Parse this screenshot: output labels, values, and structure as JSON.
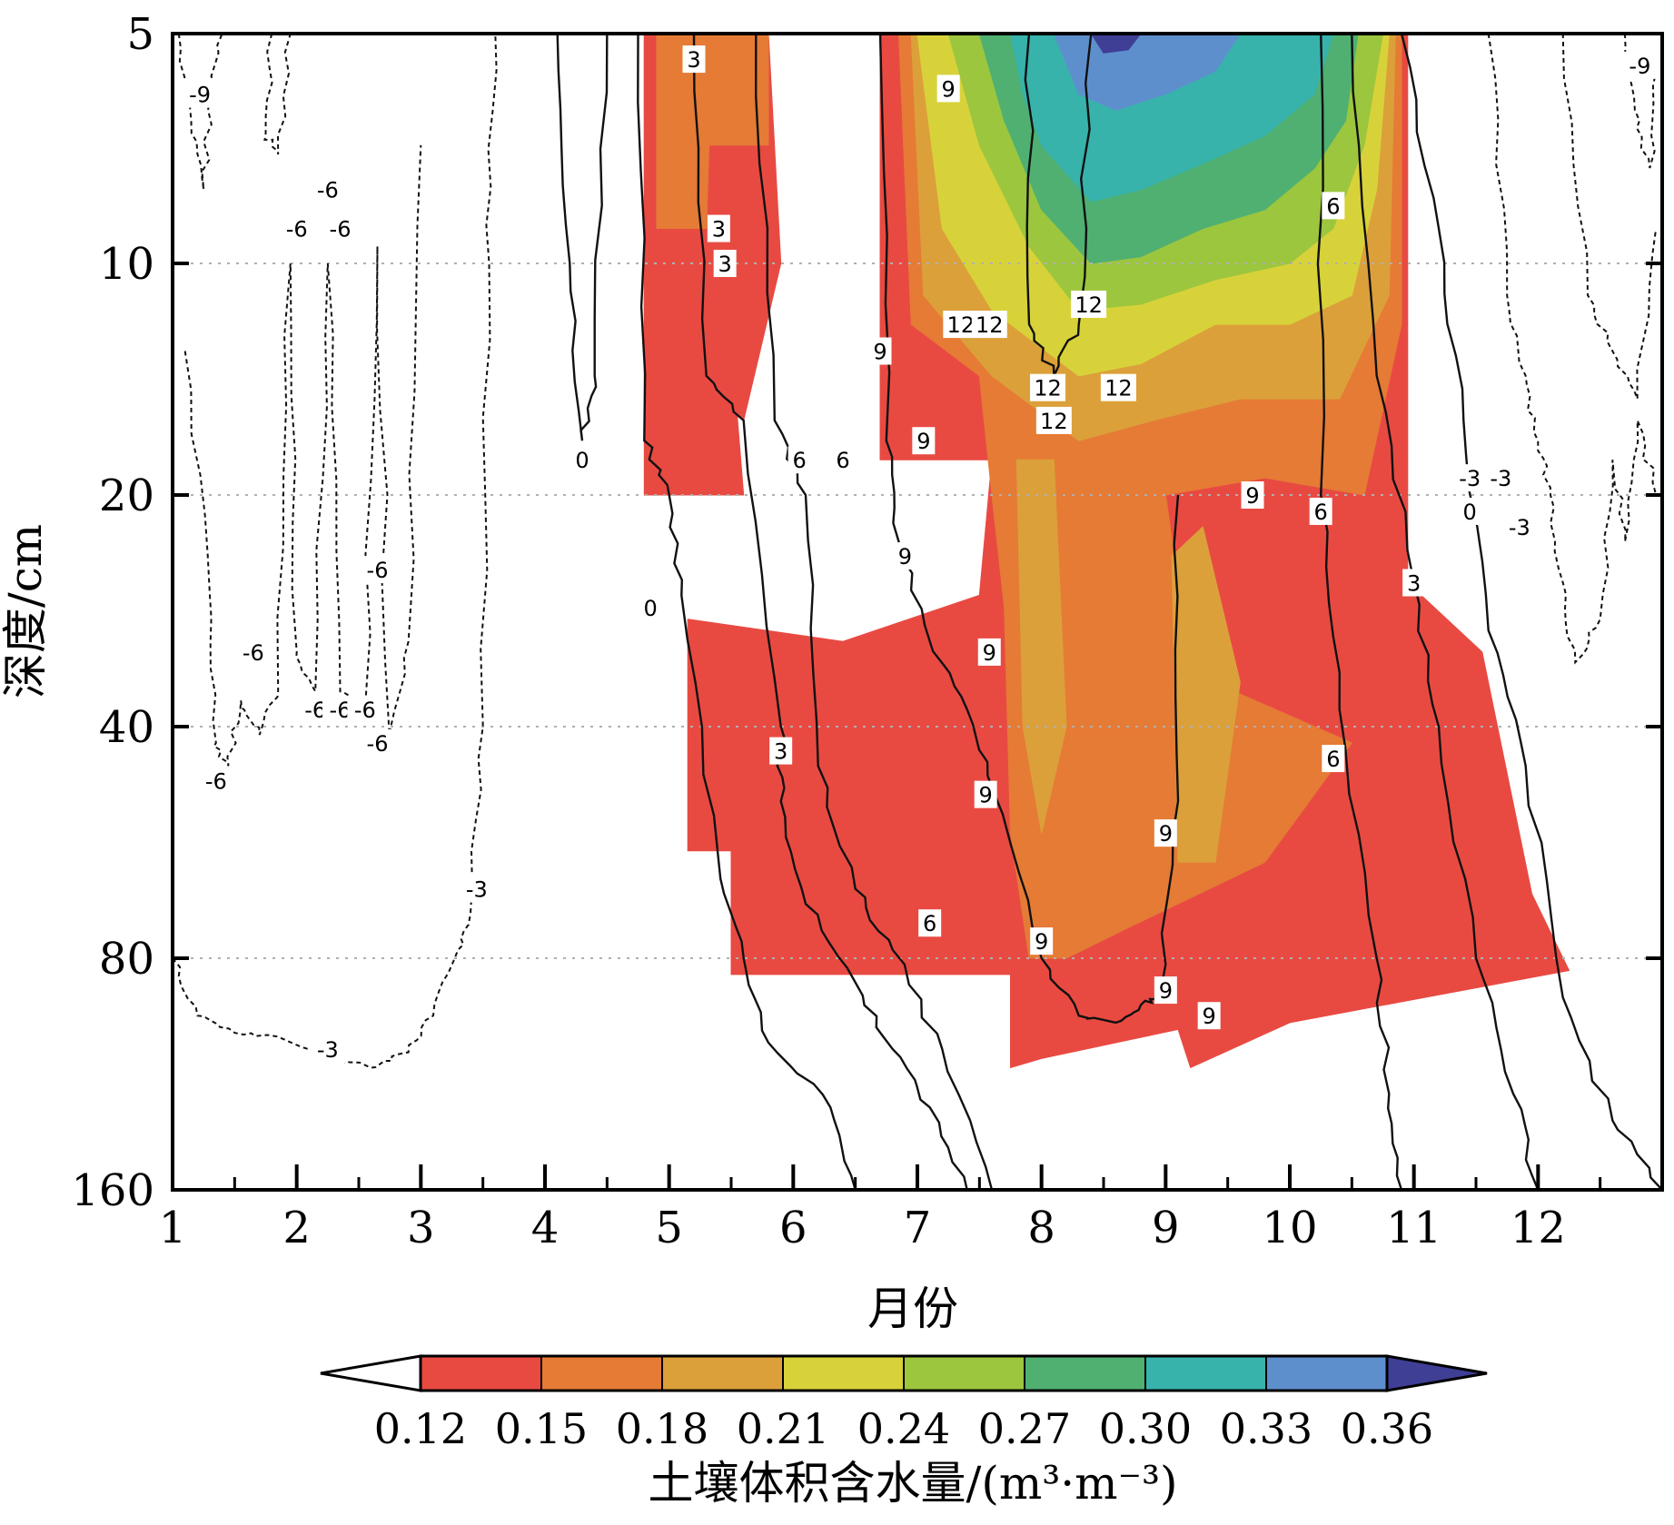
{
  "chart_data": {
    "type": "heatmap",
    "xlabel": "月份",
    "ylabel": "深度/cm",
    "x_ticks": [
      1,
      2,
      3,
      4,
      5,
      6,
      7,
      8,
      9,
      10,
      11,
      12
    ],
    "xlim": [
      1,
      13
    ],
    "y_ticks": [
      5,
      10,
      20,
      40,
      80,
      160
    ],
    "ylim": [
      5,
      160
    ],
    "y_scale": "log",
    "y_inverted": true,
    "grid": "horizontal dotted at depths 10, 20, 40, 80",
    "colorbar": {
      "label": "土壤体积含水量/(m³·m⁻³)",
      "ticks": [
        "0.12",
        "0.15",
        "0.18",
        "0.21",
        "0.24",
        "0.27",
        "0.30",
        "0.33",
        "0.36"
      ],
      "bins": [
        {
          "range": "<0.12",
          "color": "#ffffff"
        },
        {
          "range": "0.12-0.15",
          "color": "#e84a42"
        },
        {
          "range": "0.15-0.18",
          "color": "#e57b35"
        },
        {
          "range": "0.18-0.21",
          "color": "#dca03a"
        },
        {
          "range": "0.21-0.24",
          "color": "#d8d23a"
        },
        {
          "range": "0.24-0.27",
          "color": "#9cc63e"
        },
        {
          "range": "0.27-0.30",
          "color": "#4fb072"
        },
        {
          "range": "0.30-0.33",
          "color": "#37b3ac"
        },
        {
          "range": "0.33-0.36",
          "color": "#5e8fcd"
        },
        {
          "range": ">0.36",
          "color": "#3f3f96"
        }
      ]
    },
    "filled_regions": [
      {
        "bin": 1,
        "poly": [
          [
            4.8,
            5
          ],
          [
            5.3,
            5
          ],
          [
            5.6,
            20
          ],
          [
            4.8,
            20
          ]
        ]
      },
      {
        "bin": 1,
        "poly": [
          [
            4.8,
            5
          ],
          [
            5.8,
            5
          ],
          [
            5.9,
            10
          ],
          [
            5.6,
            16
          ],
          [
            4.8,
            13
          ]
        ]
      },
      {
        "bin": 1,
        "poly": [
          [
            6.7,
            5
          ],
          [
            10.95,
            5
          ],
          [
            10.95,
            26
          ],
          [
            11.55,
            32
          ],
          [
            11.95,
            66
          ],
          [
            12.25,
            83
          ],
          [
            10.0,
            97
          ],
          [
            9.2,
            111
          ],
          [
            9.1,
            99
          ],
          [
            8.0,
            108
          ],
          [
            7.75,
            111
          ],
          [
            7.75,
            84
          ],
          [
            5.5,
            84
          ],
          [
            5.5,
            58
          ],
          [
            5.15,
            58
          ],
          [
            5.15,
            29
          ],
          [
            6.4,
            31
          ],
          [
            7.5,
            27
          ],
          [
            7.6,
            18
          ],
          [
            6.7,
            18
          ]
        ]
      },
      {
        "bin": 2,
        "poly": [
          [
            4.9,
            5
          ],
          [
            5.35,
            5
          ],
          [
            5.3,
            9
          ],
          [
            4.9,
            9
          ]
        ]
      },
      {
        "bin": 2,
        "poly": [
          [
            6.85,
            5
          ],
          [
            10.9,
            5
          ],
          [
            10.9,
            12
          ],
          [
            10.6,
            20
          ],
          [
            9.8,
            19
          ],
          [
            9.0,
            20
          ],
          [
            9.2,
            34
          ],
          [
            10.5,
            42
          ],
          [
            9.8,
            60
          ],
          [
            8.7,
            73
          ],
          [
            8.2,
            80
          ],
          [
            7.9,
            80
          ],
          [
            7.75,
            55
          ],
          [
            7.7,
            28
          ],
          [
            7.6,
            20
          ],
          [
            7.5,
            14
          ],
          [
            6.95,
            12
          ]
        ]
      },
      {
        "bin": 2,
        "poly": [
          [
            5.3,
            5
          ],
          [
            5.8,
            5
          ],
          [
            5.8,
            7
          ],
          [
            5.3,
            7
          ]
        ]
      },
      {
        "bin": 3,
        "poly": [
          [
            6.95,
            5
          ],
          [
            10.85,
            5
          ],
          [
            10.8,
            11
          ],
          [
            10.4,
            15
          ],
          [
            9.6,
            15
          ],
          [
            8.9,
            16
          ],
          [
            8.3,
            17
          ],
          [
            7.6,
            14
          ],
          [
            7.05,
            11
          ]
        ]
      },
      {
        "bin": 3,
        "poly": [
          [
            7.8,
            18
          ],
          [
            8.1,
            18
          ],
          [
            8.2,
            40
          ],
          [
            8.0,
            55
          ],
          [
            7.85,
            40
          ]
        ]
      },
      {
        "bin": 3,
        "poly": [
          [
            9.05,
            24
          ],
          [
            9.3,
            22
          ],
          [
            9.6,
            35
          ],
          [
            9.4,
            60
          ],
          [
            9.1,
            60
          ]
        ]
      },
      {
        "bin": 4,
        "poly": [
          [
            7.0,
            5
          ],
          [
            10.8,
            5
          ],
          [
            10.7,
            8
          ],
          [
            10.5,
            11
          ],
          [
            10.0,
            12
          ],
          [
            9.4,
            12
          ],
          [
            8.8,
            13.5
          ],
          [
            8.3,
            14
          ],
          [
            7.6,
            11.5
          ],
          [
            7.2,
            9
          ]
        ]
      },
      {
        "bin": 5,
        "poly": [
          [
            7.25,
            5
          ],
          [
            10.75,
            5
          ],
          [
            10.6,
            7
          ],
          [
            10.35,
            9
          ],
          [
            10.0,
            10
          ],
          [
            9.4,
            10.5
          ],
          [
            8.8,
            11.3
          ],
          [
            8.3,
            11.5
          ],
          [
            7.9,
            9.5
          ],
          [
            7.5,
            7
          ]
        ]
      },
      {
        "bin": 6,
        "poly": [
          [
            7.5,
            5
          ],
          [
            10.55,
            5
          ],
          [
            10.45,
            6.5
          ],
          [
            10.2,
            7.5
          ],
          [
            9.8,
            8.5
          ],
          [
            9.3,
            9
          ],
          [
            8.8,
            9.8
          ],
          [
            8.4,
            10
          ],
          [
            8.0,
            8.5
          ],
          [
            7.7,
            6.5
          ]
        ]
      },
      {
        "bin": 7,
        "poly": [
          [
            7.75,
            5
          ],
          [
            10.35,
            5
          ],
          [
            10.2,
            6
          ],
          [
            9.8,
            6.8
          ],
          [
            9.3,
            7.4
          ],
          [
            8.8,
            8
          ],
          [
            8.4,
            8.3
          ],
          [
            8.0,
            7
          ],
          [
            7.85,
            6
          ]
        ]
      },
      {
        "bin": 8,
        "poly": [
          [
            8.1,
            5
          ],
          [
            9.6,
            5
          ],
          [
            9.4,
            5.6
          ],
          [
            9.0,
            6
          ],
          [
            8.6,
            6.3
          ],
          [
            8.3,
            6
          ]
        ]
      },
      {
        "bin": 9,
        "poly": [
          [
            8.4,
            5
          ],
          [
            8.8,
            5
          ],
          [
            8.7,
            5.25
          ],
          [
            8.5,
            5.3
          ]
        ]
      }
    ],
    "contours": [
      {
        "value": -9,
        "dashed": true,
        "points": [
          [
            1.05,
            5
          ],
          [
            1.15,
            6.5
          ],
          [
            1.25,
            8
          ],
          [
            1.3,
            6
          ],
          [
            1.4,
            5
          ]
        ]
      },
      {
        "value": -9,
        "dashed": true,
        "points": [
          [
            12.7,
            5
          ],
          [
            12.78,
            6.3
          ],
          [
            12.9,
            7.5
          ],
          [
            12.95,
            5.6
          ]
        ]
      },
      {
        "value": -6,
        "dashed": true,
        "points": [
          [
            1.1,
            13
          ],
          [
            1.3,
            27
          ],
          [
            1.35,
            42
          ],
          [
            1.45,
            45
          ],
          [
            1.55,
            37
          ],
          [
            1.7,
            41
          ],
          [
            1.85,
            36
          ],
          [
            1.95,
            10
          ],
          [
            2.0,
            32
          ],
          [
            2.15,
            36
          ],
          [
            2.25,
            10
          ],
          [
            2.35,
            36
          ],
          [
            2.55,
            38
          ],
          [
            2.65,
            9.5
          ],
          [
            2.75,
            42
          ],
          [
            2.9,
            31
          ],
          [
            3.0,
            7
          ]
        ]
      },
      {
        "value": -6,
        "dashed": true,
        "points": [
          [
            1.8,
            5
          ],
          [
            1.75,
            6.8
          ],
          [
            1.85,
            7.2
          ],
          [
            1.95,
            5
          ]
        ]
      },
      {
        "value": -6,
        "dashed": true,
        "points": [
          [
            12.2,
            5
          ],
          [
            12.4,
            11
          ],
          [
            12.6,
            13
          ],
          [
            12.8,
            15
          ],
          [
            12.95,
            9
          ]
        ]
      },
      {
        "value": -3,
        "dashed": true,
        "points": [
          [
            1.0,
            80
          ],
          [
            1.2,
            95
          ],
          [
            1.5,
            100
          ],
          [
            1.9,
            102
          ],
          [
            2.3,
            108
          ],
          [
            2.6,
            111
          ],
          [
            2.9,
            106
          ],
          [
            3.1,
            95
          ],
          [
            3.3,
            78
          ],
          [
            3.4,
            70
          ],
          [
            3.5,
            40
          ],
          [
            3.55,
            10
          ],
          [
            3.6,
            5
          ]
        ]
      },
      {
        "value": -3,
        "dashed": true,
        "points": [
          [
            11.6,
            5
          ],
          [
            11.75,
            11
          ],
          [
            11.9,
            14
          ],
          [
            12.0,
            17
          ],
          [
            12.1,
            20
          ],
          [
            12.2,
            26
          ],
          [
            12.3,
            33
          ],
          [
            12.5,
            29
          ],
          [
            12.6,
            18
          ],
          [
            12.7,
            23
          ],
          [
            12.8,
            16
          ],
          [
            12.95,
            20
          ]
        ]
      },
      {
        "value": 0,
        "dashed": false,
        "points": [
          [
            4.1,
            5
          ],
          [
            4.2,
            10
          ],
          [
            4.3,
            17
          ],
          [
            4.4,
            14
          ],
          [
            4.5,
            5
          ]
        ]
      },
      {
        "value": 0,
        "dashed": false,
        "points": [
          [
            4.75,
            5
          ],
          [
            4.8,
            17
          ],
          [
            5.0,
            20
          ],
          [
            5.1,
            27
          ],
          [
            5.4,
            60
          ],
          [
            5.6,
            80
          ],
          [
            5.8,
            103
          ],
          [
            6.3,
            125
          ],
          [
            6.5,
            160
          ]
        ]
      },
      {
        "value": 0,
        "dashed": false,
        "points": [
          [
            10.9,
            5
          ],
          [
            11.2,
            9
          ],
          [
            11.4,
            16
          ],
          [
            11.6,
            30
          ],
          [
            11.9,
            45
          ],
          [
            12.2,
            90
          ],
          [
            12.6,
            130
          ],
          [
            13.0,
            160
          ]
        ]
      },
      {
        "value": 3,
        "dashed": false,
        "points": [
          [
            5.2,
            5
          ],
          [
            5.3,
            14
          ],
          [
            5.6,
            16
          ],
          [
            5.9,
            40
          ],
          [
            5.9,
            50
          ],
          [
            6.1,
            68
          ],
          [
            6.5,
            86
          ],
          [
            6.8,
            105
          ],
          [
            7.1,
            125
          ],
          [
            7.4,
            160
          ]
        ]
      },
      {
        "value": 3,
        "dashed": false,
        "points": [
          [
            10.5,
            5
          ],
          [
            10.7,
            14
          ],
          [
            11.0,
            26
          ],
          [
            11.2,
            40
          ],
          [
            11.5,
            80
          ],
          [
            11.8,
            120
          ],
          [
            12.0,
            160
          ]
        ]
      },
      {
        "value": 6,
        "dashed": false,
        "points": [
          [
            5.7,
            5
          ],
          [
            5.85,
            16
          ],
          [
            6.1,
            20
          ],
          [
            6.2,
            45
          ],
          [
            6.5,
            65
          ],
          [
            6.8,
            78
          ],
          [
            7.2,
            105
          ],
          [
            7.6,
            160
          ]
        ]
      },
      {
        "value": 6,
        "dashed": false,
        "points": [
          [
            10.25,
            5
          ],
          [
            10.25,
            20
          ],
          [
            10.4,
            38
          ],
          [
            10.7,
            80
          ],
          [
            10.8,
            120
          ],
          [
            10.9,
            160
          ]
        ]
      },
      {
        "value": 9,
        "dashed": false,
        "points": [
          [
            6.7,
            5
          ],
          [
            6.75,
            17
          ],
          [
            6.85,
            23
          ],
          [
            7.1,
            31
          ],
          [
            7.4,
            38
          ],
          [
            7.6,
            48
          ],
          [
            8.0,
            80
          ],
          [
            8.3,
            95
          ],
          [
            8.6,
            97
          ],
          [
            8.8,
            92
          ],
          [
            8.95,
            90
          ],
          [
            9.1,
            50
          ],
          [
            9.1,
            20
          ]
        ]
      },
      {
        "value": 12,
        "dashed": false,
        "points": [
          [
            7.9,
            5
          ],
          [
            7.9,
            12
          ],
          [
            8.1,
            14
          ],
          [
            8.3,
            12
          ],
          [
            8.4,
            5
          ]
        ]
      }
    ],
    "contour_labels": [
      "-9",
      "-9",
      "-6",
      "-6",
      "-6",
      "-6",
      "-6",
      "-6",
      "-6",
      "-6",
      "-6",
      "-6",
      "-3",
      "-3",
      "-3",
      "-3",
      "-3",
      "0",
      "0",
      "0",
      "3",
      "3",
      "3",
      "3",
      "3",
      "6",
      "6",
      "6",
      "6",
      "6",
      "6",
      "9",
      "9",
      "9",
      "9",
      "9",
      "9",
      "9",
      "9",
      "9",
      "9",
      "9",
      "12",
      "12",
      "12",
      "12",
      "12",
      "12"
    ]
  }
}
